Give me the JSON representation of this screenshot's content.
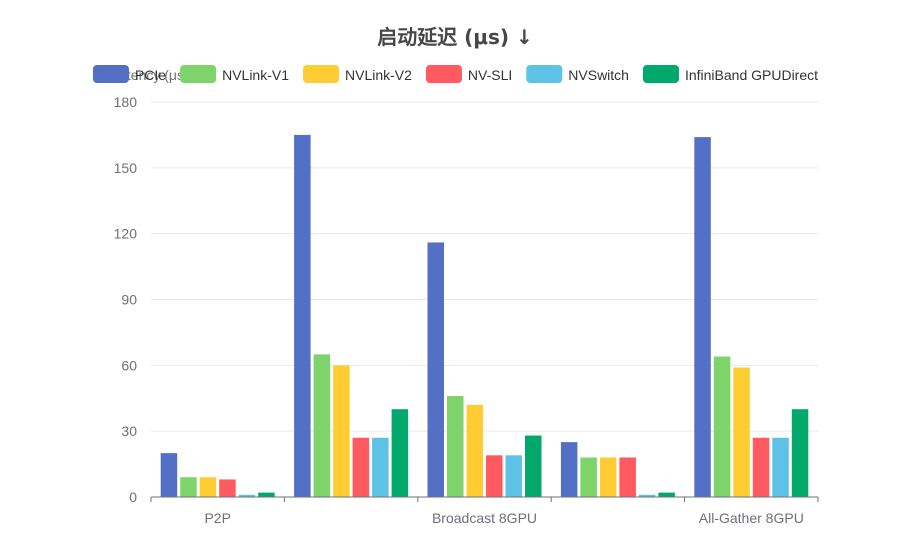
{
  "chart_data": {
    "type": "bar",
    "title": "启动延迟 (μs) ↓",
    "ylabel": "Latency (μs)",
    "xlabel": "",
    "ylim": [
      0,
      180
    ],
    "yticks": [
      0,
      30,
      60,
      90,
      120,
      150,
      180
    ],
    "grid": true,
    "legend_position": "top",
    "categories": [
      "P2P",
      "",
      "Broadcast 8GPU",
      "",
      "All-Gather 8GPU"
    ],
    "series": [
      {
        "name": "PCIe",
        "color": "#5470c6",
        "values": [
          20,
          165,
          116,
          25,
          164
        ]
      },
      {
        "name": "NVLink-V1",
        "color": "#7fd36b",
        "values": [
          9,
          65,
          46,
          18,
          64
        ]
      },
      {
        "name": "NVLink-V2",
        "color": "#ffcc33",
        "values": [
          9,
          60,
          42,
          18,
          59
        ]
      },
      {
        "name": "NV-SLI",
        "color": "#ff5a5f",
        "values": [
          8,
          27,
          19,
          18,
          27
        ]
      },
      {
        "name": "NVSwitch",
        "color": "#5ec2e6",
        "values": [
          1,
          27,
          19,
          1,
          27
        ]
      },
      {
        "name": "InfiniBand GPUDirect",
        "color": "#00a86b",
        "values": [
          2,
          40,
          28,
          2,
          40
        ]
      }
    ]
  }
}
